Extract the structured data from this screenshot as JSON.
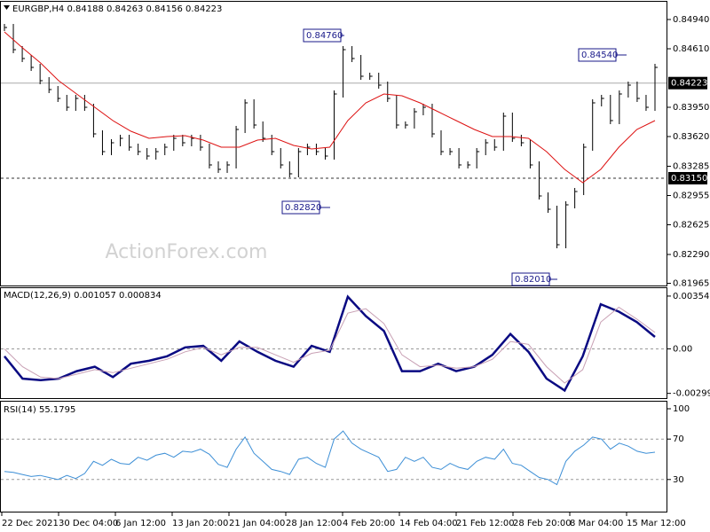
{
  "chart_data": [
    {
      "type": "ohlc",
      "title": "EURGBP,H4 0.84188 0.84263 0.84156 0.84223",
      "watermark": "ActionForex.com",
      "ylim": [
        0.8194,
        0.8514
      ],
      "yticks": [
        {
          "value": 0.8494,
          "label": "0.84940"
        },
        {
          "value": 0.8461,
          "label": "0.84610"
        },
        {
          "value": 0.8395,
          "label": "0.83950"
        },
        {
          "value": 0.8362,
          "label": "0.83620"
        },
        0.83285,
        0.82955,
        0.82625,
        {
          "value": 0.8229,
          "label": "0.82290"
        },
        0.81965
      ],
      "series": [
        {
          "name": "Close",
          "color": "#000000",
          "values": [
            0.8485,
            0.846,
            0.845,
            0.844,
            0.8425,
            0.8415,
            0.8405,
            0.8395,
            0.8405,
            0.8395,
            0.8365,
            0.8345,
            0.8355,
            0.836,
            0.835,
            0.8345,
            0.834,
            0.8345,
            0.835,
            0.836,
            0.8355,
            0.836,
            0.835,
            0.833,
            0.8325,
            0.833,
            0.837,
            0.84,
            0.8375,
            0.836,
            0.8345,
            0.833,
            0.832,
            0.8345,
            0.835,
            0.8345,
            0.834,
            0.841,
            0.846,
            0.845,
            0.843,
            0.843,
            0.842,
            0.8405,
            0.8375,
            0.8375,
            0.839,
            0.8395,
            0.8365,
            0.8345,
            0.8345,
            0.833,
            0.833,
            0.8345,
            0.8355,
            0.835,
            0.8385,
            0.836,
            0.8355,
            0.833,
            0.8295,
            0.828,
            0.824,
            0.8285,
            0.83,
            0.835,
            0.84,
            0.8405,
            0.838,
            0.841,
            0.842,
            0.8405,
            0.8395,
            0.844
          ]
        },
        {
          "name": "MA",
          "color": "#dd1111",
          "values": [
            0.848,
            0.8462,
            0.8445,
            0.8425,
            0.841,
            0.8395,
            0.838,
            0.8368,
            0.836,
            0.8362,
            0.8363,
            0.8358,
            0.835,
            0.835,
            0.8358,
            0.836,
            0.8352,
            0.8348,
            0.835,
            0.838,
            0.84,
            0.841,
            0.8408,
            0.84,
            0.839,
            0.838,
            0.837,
            0.8362,
            0.8362,
            0.836,
            0.8345,
            0.8325,
            0.831,
            0.8325,
            0.835,
            0.837,
            0.838
          ]
        }
      ],
      "markers": [
        {
          "value": 0.84223,
          "label": "0.84223",
          "style": "current"
        },
        {
          "value": 0.8315,
          "label": "0.83150",
          "style": "dashed"
        }
      ],
      "annotations": [
        {
          "value": 0.8476,
          "label": "0.84760"
        },
        {
          "value": 0.8282,
          "label": "0.82820"
        },
        {
          "value": 0.8201,
          "label": "0.82010"
        },
        {
          "value": 0.8454,
          "label": "0.84540"
        }
      ]
    },
    {
      "type": "line",
      "title": "MACD(12,26,9) 0.001057 0.000834",
      "ylim": [
        -0.00337,
        0.00408
      ],
      "yticks": [
        0.003548,
        {
          "value": 0,
          "label": "0.00"
        },
        -0.002992
      ],
      "series": [
        {
          "name": "MACD",
          "color": "#0a0a82",
          "values": [
            -0.0005,
            -0.002,
            -0.0021,
            -0.002,
            -0.0015,
            -0.0012,
            -0.0019,
            -0.001,
            -0.0008,
            -0.0005,
            0.0001,
            0.0002,
            -0.0008,
            0.0005,
            -0.0002,
            -0.0008,
            -0.0012,
            0.0002,
            -0.0002,
            0.0035,
            0.0022,
            0.0012,
            -0.0015,
            -0.0015,
            -0.001,
            -0.0015,
            -0.0012,
            -0.0004,
            0.001,
            -0.0002,
            -0.002,
            -0.0028,
            -0.0005,
            0.003,
            0.0025,
            0.0018,
            0.0008
          ]
        },
        {
          "name": "Signal",
          "color": "#c8a0b4",
          "values": [
            0,
            -0.0012,
            -0.0019,
            -0.002,
            -0.0017,
            -0.0014,
            -0.0016,
            -0.0013,
            -0.001,
            -0.0007,
            -0.0002,
            0.0001,
            -0.0004,
            0.0001,
            0.0001,
            -0.0004,
            -0.0009,
            -0.0003,
            -0.0001,
            0.0024,
            0.0027,
            0.0017,
            -0.0004,
            -0.0012,
            -0.0011,
            -0.0013,
            -0.0012,
            -0.0007,
            0.0005,
            0.0003,
            -0.0012,
            -0.0023,
            -0.0014,
            0.0018,
            0.0028,
            0.002,
            0.0011
          ]
        }
      ]
    },
    {
      "type": "line",
      "title": "RSI(14) 55.1795",
      "ylim": [
        0,
        100
      ],
      "yticks": [
        100,
        70,
        30
      ],
      "series": [
        {
          "name": "RSI",
          "color": "#3d8fd6",
          "values": [
            38,
            37,
            35,
            33,
            34,
            32,
            30,
            34,
            31,
            36,
            48,
            44,
            50,
            46,
            45,
            52,
            49,
            54,
            56,
            52,
            58,
            57,
            60,
            55,
            45,
            42,
            60,
            72,
            56,
            48,
            40,
            38,
            35,
            50,
            52,
            46,
            42,
            70,
            78,
            66,
            60,
            56,
            52,
            38,
            40,
            52,
            48,
            52,
            42,
            40,
            46,
            42,
            40,
            48,
            52,
            50,
            60,
            46,
            44,
            38,
            32,
            30,
            25,
            48,
            58,
            64,
            72,
            70,
            60,
            66,
            63,
            58,
            56,
            57
          ]
        }
      ]
    }
  ],
  "x_labels": [
    "22 Dec 2021",
    "30 Dec 04:00",
    "6 Jan 12:00",
    "13 Jan 20:00",
    "21 Jan 04:00",
    "28 Jan 12:00",
    "4 Feb 20:00",
    "14 Feb 04:00",
    "21 Feb 12:00",
    "28 Feb 20:00",
    "8 Mar 04:00",
    "15 Mar 12:00"
  ]
}
